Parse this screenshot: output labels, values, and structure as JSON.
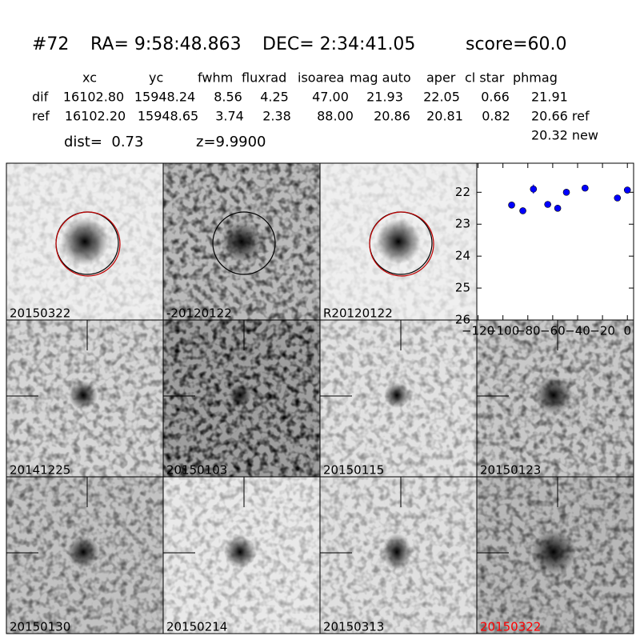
{
  "header": {
    "id": "#72",
    "ra": "RA= 9:58:48.863",
    "dec": "DEC= 2:34:41.05",
    "score": "score=60.0"
  },
  "table": {
    "columns": [
      "xc",
      "yc",
      "fwhm",
      "fluxrad",
      "isoarea",
      "mag auto",
      "aper",
      "cl star",
      "phmag"
    ],
    "rows": [
      [
        "dif",
        "16102.80",
        "15948.24",
        "8.56",
        "4.25",
        "47.00",
        "21.93",
        "22.05",
        "0.66",
        "21.91"
      ],
      [
        "ref",
        "16102.20",
        "15948.65",
        "3.74",
        "2.38",
        "88.00",
        "20.86",
        "20.81",
        "0.82",
        "20.66 ref"
      ]
    ],
    "extra": "20.32 new"
  },
  "dist": "dist=  0.73",
  "z": "z=9.9900",
  "panels": [
    "20150322",
    "-20120122",
    "R20120122",
    "20141225",
    "20150103",
    "20150115",
    "20150123",
    "20150130",
    "20150214",
    "20150313",
    "20150322"
  ],
  "chart_data": {
    "type": "scatter",
    "x": [
      -93,
      -84,
      -75.5,
      -64,
      -56,
      -49,
      -34,
      -8,
      0
    ],
    "values": [
      22.4,
      22.58,
      21.9,
      22.38,
      22.5,
      22.0,
      21.87,
      22.18,
      21.93
    ],
    "errors": [
      0.08,
      0.08,
      0.14,
      0.1,
      0.1,
      0.1,
      0.06,
      0.08,
      0.1
    ],
    "color": "#0000ff",
    "xlim": [
      -121,
      5
    ],
    "xticks": [
      {
        "value": -120,
        "label": "−120"
      },
      {
        "value": -100,
        "label": "−100"
      },
      {
        "value": -80,
        "label": "−80"
      },
      {
        "value": -60,
        "label": "−60"
      },
      {
        "value": -40,
        "label": "−40"
      },
      {
        "value": -20,
        "label": "−20"
      },
      0
    ],
    "ylim": [
      26,
      21.09
    ],
    "yticks": [
      22,
      23,
      24,
      25,
      26
    ]
  }
}
